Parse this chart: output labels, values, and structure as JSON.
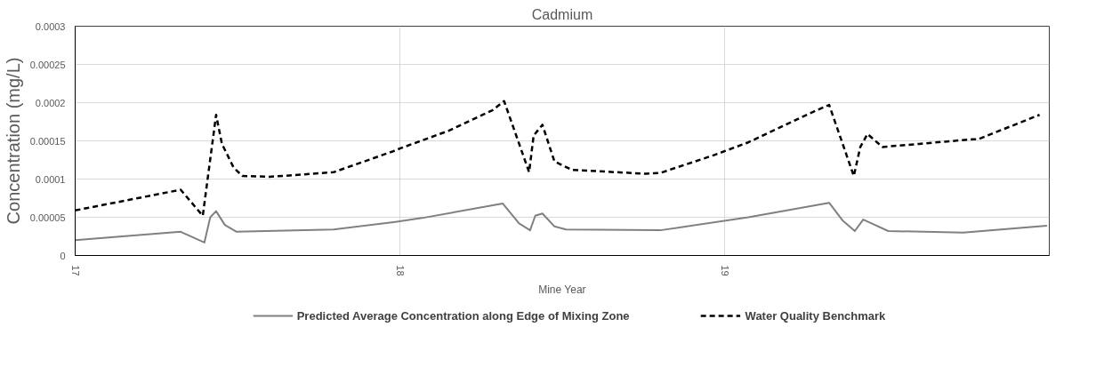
{
  "chart_data": {
    "type": "line",
    "title": "Cadmium",
    "xlabel": "Mine Year",
    "ylabel": "Concentration (mg/L)",
    "xlim": [
      17,
      20
    ],
    "xticks": [
      17,
      18,
      19
    ],
    "ylim": [
      0,
      0.0003
    ],
    "yticks": [
      0,
      {
        "value": 5e-05,
        "label": "0.00005"
      },
      0.0001,
      0.00015,
      0.0002,
      0.00025,
      0.0003
    ],
    "grid": true,
    "legend": "bottom",
    "series": [
      {
        "name": "Predicted Average Concentration along Edge of Mixing Zone",
        "color": "#808080",
        "line_style": "solid",
        "x": [
          17.0,
          17.325,
          17.398,
          17.416,
          17.434,
          17.461,
          17.497,
          17.796,
          17.986,
          18.068,
          18.317,
          18.367,
          18.401,
          18.417,
          18.439,
          18.476,
          18.512,
          18.802,
          19.073,
          19.322,
          19.363,
          19.401,
          19.427,
          19.504,
          19.735,
          19.993
        ],
        "values": [
          2e-05,
          3.1e-05,
          1.7e-05,
          5e-05,
          5.8e-05,
          4e-05,
          3.1e-05,
          3.4e-05,
          4.4e-05,
          4.9e-05,
          6.8e-05,
          4.2e-05,
          3.3e-05,
          5.2e-05,
          5.5e-05,
          3.8e-05,
          3.4e-05,
          3.3e-05,
          5e-05,
          6.9e-05,
          4.6e-05,
          3.2e-05,
          4.7e-05,
          3.2e-05,
          3e-05,
          3.9e-05
        ]
      },
      {
        "name": "Water Quality Benchmark",
        "color": "#000000",
        "line_style": "dashed",
        "x": [
          17.0,
          17.325,
          17.393,
          17.434,
          17.452,
          17.488,
          17.515,
          17.597,
          17.669,
          17.796,
          17.977,
          18.0,
          18.149,
          18.285,
          18.321,
          18.398,
          18.412,
          18.439,
          18.476,
          18.53,
          18.756,
          18.802,
          18.965,
          19.073,
          19.273,
          19.322,
          19.398,
          19.418,
          19.44,
          19.486,
          19.599,
          19.762,
          19.78,
          19.97
        ],
        "values": [
          5.9e-05,
          8.6e-05,
          5.2e-05,
          0.000184,
          0.000146,
          0.000115,
          0.000104,
          0.000103,
          0.000105,
          0.000109,
          0.000136,
          0.00014,
          0.000163,
          0.00019,
          0.000202,
          0.000109,
          0.000157,
          0.000171,
          0.000123,
          0.000112,
          0.000107,
          0.000108,
          0.000131,
          0.000148,
          0.000188,
          0.000197,
          0.000104,
          0.000142,
          0.000159,
          0.000142,
          0.000146,
          0.000152,
          0.000152,
          0.000184
        ]
      }
    ]
  }
}
